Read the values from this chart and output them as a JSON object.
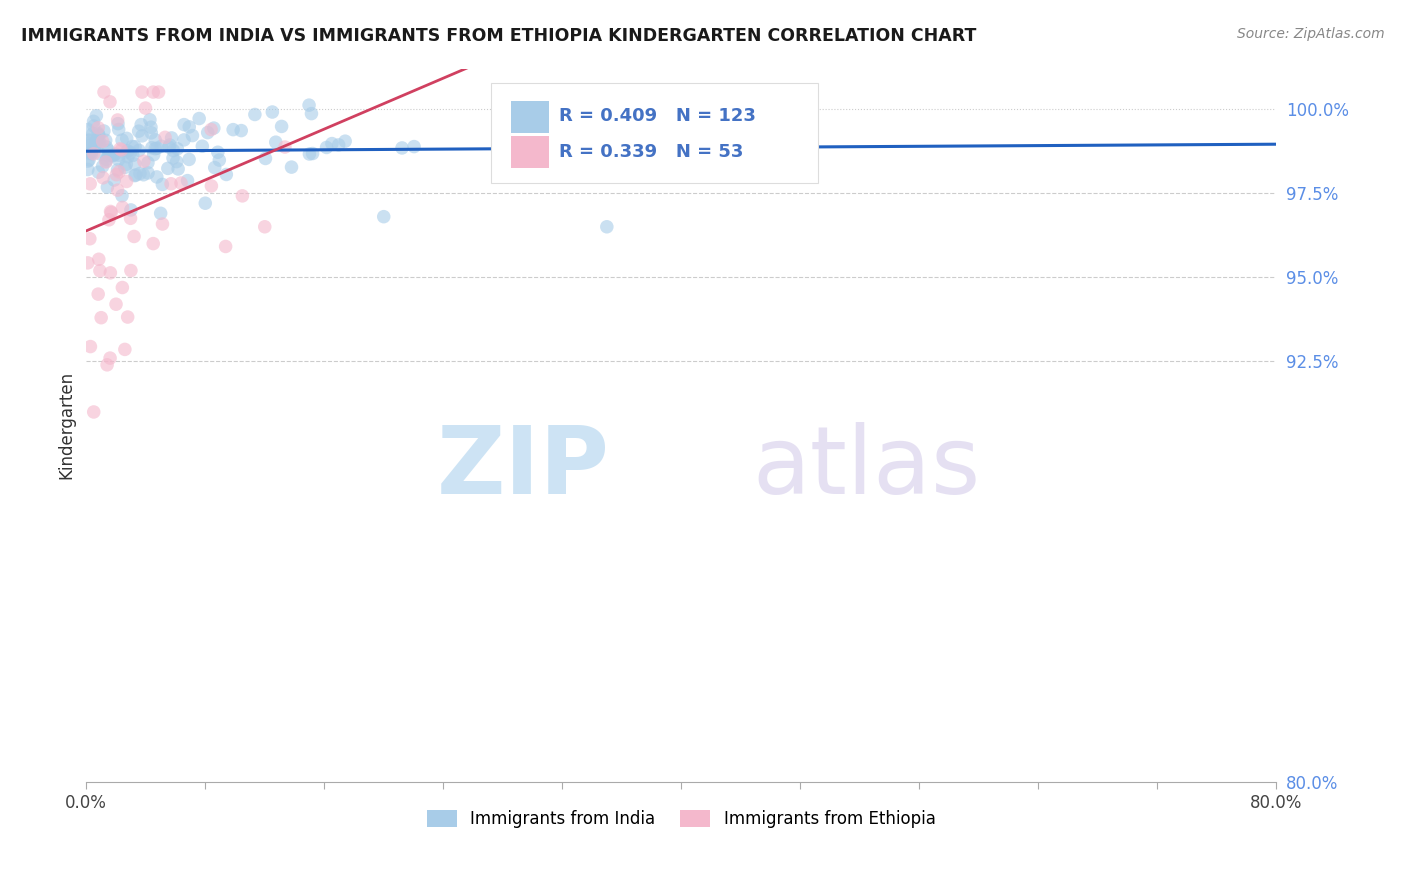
{
  "title": "IMMIGRANTS FROM INDIA VS IMMIGRANTS FROM ETHIOPIA KINDERGARTEN CORRELATION CHART",
  "source": "Source: ZipAtlas.com",
  "ylabel": "Kindergarten",
  "legend_india": "Immigrants from India",
  "legend_ethiopia": "Immigrants from Ethiopia",
  "R_india": 0.409,
  "N_india": 123,
  "R_ethiopia": 0.339,
  "N_ethiopia": 53,
  "color_india": "#a8cce8",
  "color_ethiopia": "#f4b8cc",
  "trendline_india": "#2060c0",
  "trendline_ethiopia": "#d04060",
  "background_color": "#ffffff",
  "watermark_zip": "ZIP",
  "watermark_atlas": "atlas",
  "xlim": [
    0.0,
    80.0
  ],
  "ylim": [
    80.0,
    101.2
  ],
  "ytick_positions": [
    100.0,
    97.5,
    95.0,
    92.5,
    80.0
  ],
  "ytick_labels": [
    "100.0%",
    "97.5%",
    "95.0%",
    "92.5%",
    "80.0%"
  ]
}
